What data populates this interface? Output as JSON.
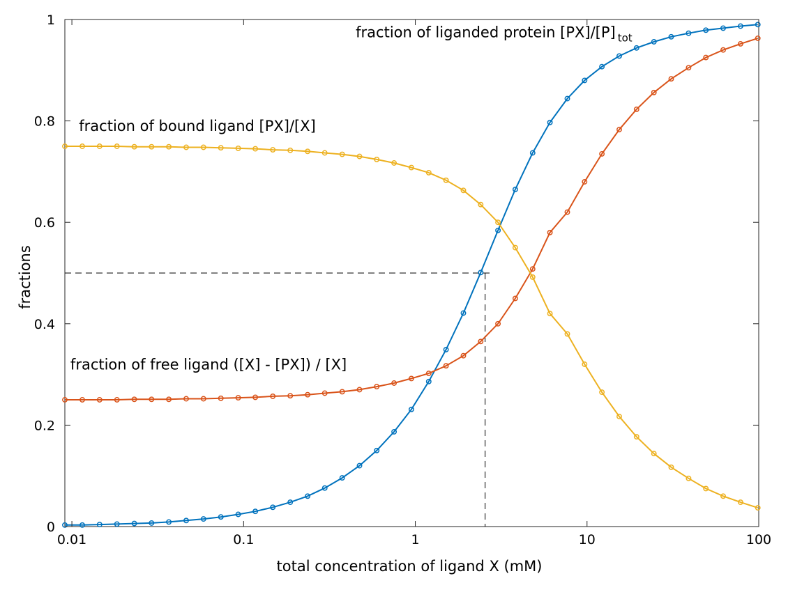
{
  "chart_data": {
    "type": "line",
    "title": "",
    "xlabel": "total concentration of ligand X (mM)",
    "ylabel": "fractions",
    "xscale": "log",
    "xlim": [
      0.0091,
      100
    ],
    "ylim": [
      0,
      1
    ],
    "grid": false,
    "legend": "none",
    "x_ticks": [
      {
        "value": 0.01,
        "label": "0.01"
      },
      {
        "value": 0.1,
        "label": "0.1"
      },
      {
        "value": 1,
        "label": "1"
      },
      {
        "value": 10,
        "label": "10"
      },
      {
        "value": 100,
        "label": "100"
      }
    ],
    "y_ticks": [
      {
        "value": 0,
        "label": "0"
      },
      {
        "value": 0.2,
        "label": "0.2"
      },
      {
        "value": 0.4,
        "label": "0.4"
      },
      {
        "value": 0.6,
        "label": "0.6"
      },
      {
        "value": 0.8,
        "label": "0.8"
      },
      {
        "value": 1,
        "label": "1"
      }
    ],
    "x": [
      0.0091,
      0.0115,
      0.0145,
      0.0183,
      0.0231,
      0.0291,
      0.0367,
      0.0463,
      0.0584,
      0.0737,
      0.093,
      0.117,
      0.148,
      0.187,
      0.236,
      0.297,
      0.375,
      0.473,
      0.596,
      0.752,
      0.949,
      1.197,
      1.51,
      1.905,
      2.403,
      3.031,
      3.823,
      4.823,
      6.084,
      7.675,
      9.682,
      12.21,
      15.41,
      19.43,
      24.52,
      30.93,
      39.02,
      49.22,
      62.09,
      78.32,
      98.8
    ],
    "series": [
      {
        "color": "#0072BD",
        "values": [
          0.003,
          0.003,
          0.004,
          0.005,
          0.006,
          0.007,
          0.009,
          0.012,
          0.015,
          0.019,
          0.024,
          0.03,
          0.038,
          0.048,
          0.06,
          0.076,
          0.096,
          0.12,
          0.15,
          0.187,
          0.231,
          0.286,
          0.349,
          0.421,
          0.501,
          0.584,
          0.665,
          0.737,
          0.797,
          0.844,
          0.88,
          0.907,
          0.928,
          0.944,
          0.956,
          0.966,
          0.973,
          0.979,
          0.983,
          0.987,
          0.99
        ]
      },
      {
        "color": "#D95319",
        "values": [
          0.25,
          0.25,
          0.25,
          0.25,
          0.251,
          0.251,
          0.251,
          0.252,
          0.252,
          0.253,
          0.254,
          0.255,
          0.257,
          0.258,
          0.26,
          0.263,
          0.266,
          0.27,
          0.276,
          0.283,
          0.292,
          0.302,
          0.317,
          0.337,
          0.365,
          0.4,
          0.45,
          0.508,
          0.58,
          0.62,
          0.68,
          0.735,
          0.783,
          0.823,
          0.856,
          0.883,
          0.905,
          0.925,
          0.94,
          0.952,
          0.963
        ]
      },
      {
        "color": "#EDB120",
        "values": [
          0.75,
          0.75,
          0.75,
          0.75,
          0.749,
          0.749,
          0.749,
          0.748,
          0.748,
          0.747,
          0.746,
          0.745,
          0.743,
          0.742,
          0.74,
          0.737,
          0.734,
          0.73,
          0.724,
          0.717,
          0.708,
          0.698,
          0.683,
          0.663,
          0.635,
          0.6,
          0.55,
          0.492,
          0.42,
          0.38,
          0.32,
          0.265,
          0.217,
          0.177,
          0.144,
          0.117,
          0.095,
          0.075,
          0.06,
          0.048,
          0.037
        ]
      }
    ],
    "annotations": [
      {
        "text": "fraction of liganded protein [PX]/[P]",
        "subscript": "tot",
        "x": 0.45,
        "y": 0.965
      },
      {
        "text": "fraction of bound ligand [PX]/[X]",
        "x": 0.011,
        "y": 0.78
      },
      {
        "text": "fraction of free ligand ([X] - [PX]) / [X]",
        "x": 0.0098,
        "y": 0.31
      }
    ],
    "reference_point": {
      "x": 2.55,
      "y": 0.5
    }
  }
}
